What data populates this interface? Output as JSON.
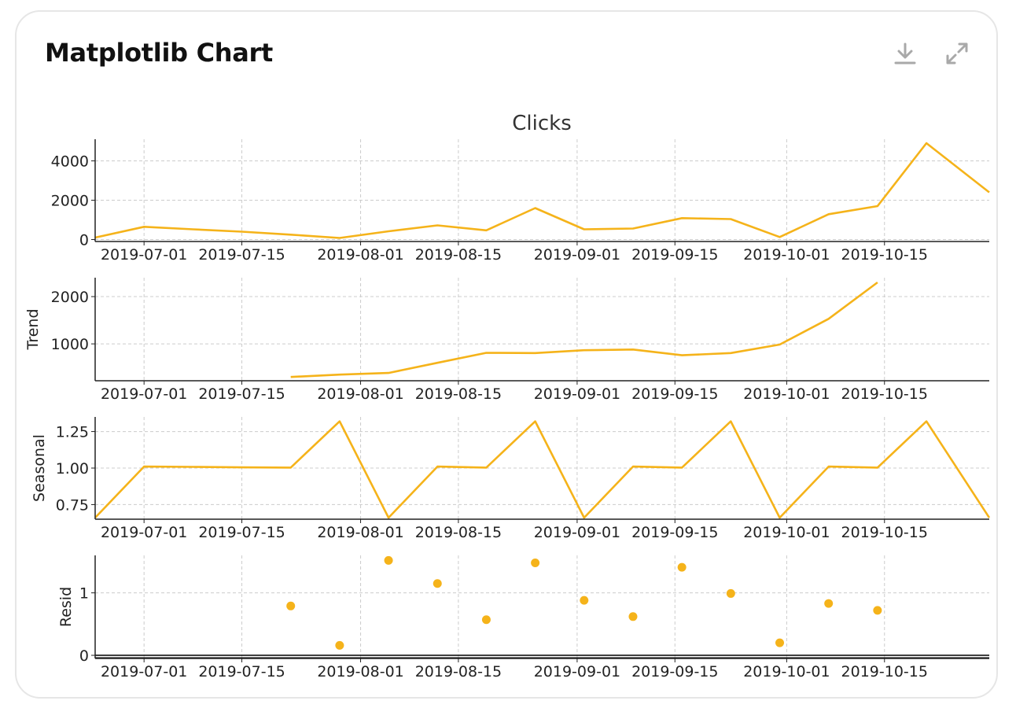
{
  "card": {
    "title": "Matplotlib Chart",
    "icons": [
      "download-icon",
      "expand-icon"
    ]
  },
  "colors": {
    "series": "#F5B31A",
    "grid": "#cccccc",
    "axis": "#222222",
    "text": "#222222"
  },
  "chart_data": {
    "type": "line",
    "title": "Clicks",
    "x_type": "date",
    "grid": true,
    "x_ticks": [
      "2019-07-01",
      "2019-07-15",
      "2019-08-01",
      "2019-08-15",
      "2019-09-01",
      "2019-09-15",
      "2019-10-01",
      "2019-10-15"
    ],
    "xlim": [
      "2019-06-24",
      "2019-10-30"
    ],
    "panels": [
      {
        "name": "observed",
        "ylabel": "",
        "kind": "line",
        "ylim": [
          -100,
          5100
        ],
        "yticks": [
          0,
          2000,
          4000
        ],
        "points": [
          [
            "2019-06-24",
            100
          ],
          [
            "2019-07-01",
            650
          ],
          [
            "2019-07-08",
            520
          ],
          [
            "2019-07-15",
            400
          ],
          [
            "2019-07-22",
            250
          ],
          [
            "2019-07-29",
            80
          ],
          [
            "2019-08-05",
            420
          ],
          [
            "2019-08-12",
            720
          ],
          [
            "2019-08-19",
            470
          ],
          [
            "2019-08-26",
            1600
          ],
          [
            "2019-09-02",
            520
          ],
          [
            "2019-09-09",
            560
          ],
          [
            "2019-09-16",
            1090
          ],
          [
            "2019-09-23",
            1040
          ],
          [
            "2019-09-30",
            130
          ],
          [
            "2019-10-07",
            1290
          ],
          [
            "2019-10-14",
            1700
          ],
          [
            "2019-10-21",
            4900
          ],
          [
            "2019-10-30",
            2400
          ]
        ]
      },
      {
        "name": "trend",
        "ylabel": "Trend",
        "kind": "line",
        "ylim": [
          220,
          2400
        ],
        "yticks": [
          1000,
          2000
        ],
        "points": [
          [
            "2019-07-22",
            300
          ],
          [
            "2019-07-29",
            350
          ],
          [
            "2019-08-05",
            385
          ],
          [
            "2019-08-12",
            600
          ],
          [
            "2019-08-19",
            810
          ],
          [
            "2019-08-26",
            805
          ],
          [
            "2019-09-02",
            865
          ],
          [
            "2019-09-09",
            880
          ],
          [
            "2019-09-16",
            760
          ],
          [
            "2019-09-23",
            805
          ],
          [
            "2019-09-30",
            985
          ],
          [
            "2019-10-07",
            1530
          ],
          [
            "2019-10-14",
            2300
          ]
        ]
      },
      {
        "name": "seasonal",
        "ylabel": "Seasonal",
        "kind": "line",
        "ylim": [
          0.65,
          1.35
        ],
        "yticks": [
          0.75,
          1.0,
          1.25
        ],
        "ytick_labels": [
          "0.75",
          "1.00",
          "1.25"
        ],
        "points": [
          [
            "2019-06-24",
            0.66
          ],
          [
            "2019-07-01",
            1.01
          ],
          [
            "2019-07-08",
            1.008
          ],
          [
            "2019-07-15",
            1.005
          ],
          [
            "2019-07-22",
            1.003
          ],
          [
            "2019-07-29",
            1.32
          ],
          [
            "2019-08-05",
            0.66
          ],
          [
            "2019-08-12",
            1.01
          ],
          [
            "2019-08-19",
            1.003
          ],
          [
            "2019-08-26",
            1.32
          ],
          [
            "2019-09-02",
            0.66
          ],
          [
            "2019-09-09",
            1.01
          ],
          [
            "2019-09-16",
            1.003
          ],
          [
            "2019-09-23",
            1.32
          ],
          [
            "2019-09-30",
            0.66
          ],
          [
            "2019-10-07",
            1.01
          ],
          [
            "2019-10-14",
            1.003
          ],
          [
            "2019-10-21",
            1.32
          ],
          [
            "2019-10-30",
            0.66
          ]
        ]
      },
      {
        "name": "resid",
        "ylabel": "Resid",
        "kind": "scatter",
        "ylim": [
          -0.05,
          1.6
        ],
        "yticks": [
          0,
          1
        ],
        "baseline": 0,
        "points": [
          [
            "2019-07-22",
            0.79
          ],
          [
            "2019-07-29",
            0.16
          ],
          [
            "2019-08-05",
            1.52
          ],
          [
            "2019-08-12",
            1.15
          ],
          [
            "2019-08-19",
            0.57
          ],
          [
            "2019-08-26",
            1.48
          ],
          [
            "2019-09-02",
            0.88
          ],
          [
            "2019-09-09",
            0.62
          ],
          [
            "2019-09-16",
            1.41
          ],
          [
            "2019-09-23",
            0.99
          ],
          [
            "2019-09-30",
            0.2
          ],
          [
            "2019-10-07",
            0.83
          ],
          [
            "2019-10-14",
            0.72
          ]
        ]
      }
    ]
  }
}
